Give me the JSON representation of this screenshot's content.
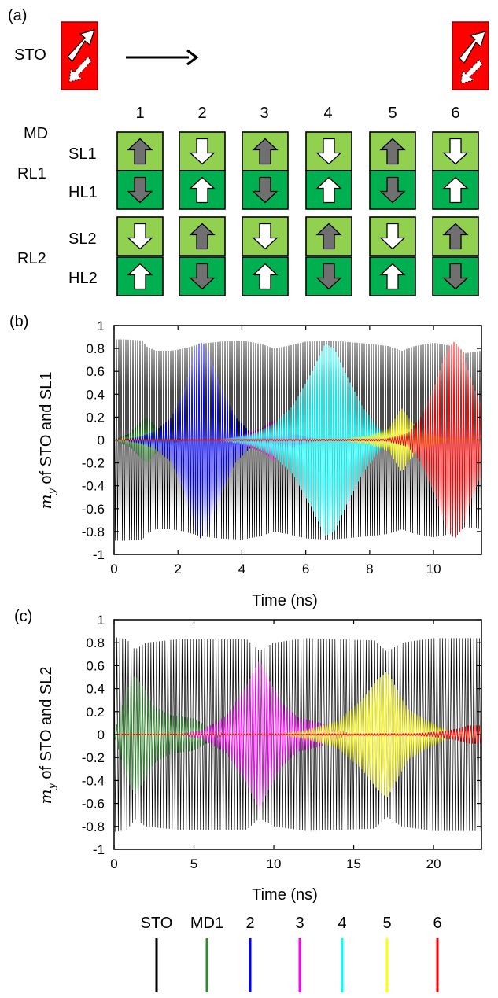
{
  "panel_a": {
    "panel_label": "(a)",
    "sto_label": "STO",
    "md_label": "MD",
    "columns": [
      "1",
      "2",
      "3",
      "4",
      "5",
      "6"
    ],
    "rows": [
      {
        "group": "RL1",
        "layer": "SL1",
        "arrows": [
          "up-gray",
          "down-white",
          "up-gray",
          "down-white",
          "up-gray",
          "down-white"
        ]
      },
      {
        "group": "RL1",
        "layer": "HL1",
        "arrows": [
          "down-gray",
          "up-white",
          "down-gray",
          "up-white",
          "down-gray",
          "up-white"
        ]
      },
      {
        "group": "RL2",
        "layer": "SL2",
        "arrows": [
          "down-white",
          "up-gray",
          "down-white",
          "up-gray",
          "down-white",
          "up-gray"
        ]
      },
      {
        "group": "RL2",
        "layer": "HL2",
        "arrows": [
          "up-white",
          "down-gray",
          "up-white",
          "down-gray",
          "up-white",
          "down-gray"
        ]
      }
    ],
    "group_labels": [
      "RL1",
      "RL2"
    ],
    "colors": {
      "sl_fill": "#92d050",
      "hl_fill": "#00b050",
      "sto_fill": "#ff0000",
      "arrow_gray": "#707070"
    }
  },
  "chart_data": [
    {
      "panel_label": "(b)",
      "type": "line",
      "xlabel": "Time (ns)",
      "ylabel": "m_y of STO and SL1",
      "xlim": [
        0,
        11.5
      ],
      "ylim": [
        -1,
        1
      ],
      "xticks": [
        "0",
        "2",
        "4",
        "6",
        "8",
        "10"
      ],
      "yticks": [
        "1",
        "0.8",
        "0.6",
        "0.4",
        "0.2",
        "0",
        "-0.2",
        "-0.4",
        "-0.6",
        "-0.8",
        "-1"
      ],
      "series": [
        {
          "name": "STO",
          "color": "#000000",
          "envelope": [
            [
              0,
              0.88
            ],
            [
              0.3,
              0.88
            ],
            [
              0.9,
              0.87
            ],
            [
              1.0,
              0.82
            ],
            [
              1.3,
              0.78
            ],
            [
              1.8,
              0.78
            ],
            [
              2.2,
              0.8
            ],
            [
              2.7,
              0.84
            ],
            [
              3.3,
              0.86
            ],
            [
              4.0,
              0.87
            ],
            [
              4.6,
              0.84
            ],
            [
              5.0,
              0.8
            ],
            [
              5.4,
              0.82
            ],
            [
              6.0,
              0.86
            ],
            [
              6.7,
              0.87
            ],
            [
              7.2,
              0.86
            ],
            [
              8.0,
              0.84
            ],
            [
              8.6,
              0.82
            ],
            [
              9.0,
              0.78
            ],
            [
              9.4,
              0.82
            ],
            [
              10.0,
              0.85
            ],
            [
              10.6,
              0.82
            ],
            [
              11.0,
              0.76
            ],
            [
              11.5,
              0.78
            ]
          ]
        },
        {
          "name": "MD1",
          "color": "#2e8b2e",
          "envelope": [
            [
              0.0,
              0.0
            ],
            [
              0.5,
              0.06
            ],
            [
              0.9,
              0.18
            ],
            [
              1.05,
              0.2
            ],
            [
              1.3,
              0.12
            ],
            [
              1.8,
              0.03
            ],
            [
              2.3,
              0.0
            ]
          ]
        },
        {
          "name": "2",
          "color": "#0000ff",
          "envelope": [
            [
              0.2,
              0.0
            ],
            [
              0.8,
              0.03
            ],
            [
              1.3,
              0.08
            ],
            [
              1.8,
              0.2
            ],
            [
              2.2,
              0.45
            ],
            [
              2.5,
              0.78
            ],
            [
              2.7,
              0.86
            ],
            [
              2.9,
              0.8
            ],
            [
              3.3,
              0.5
            ],
            [
              3.8,
              0.2
            ],
            [
              4.3,
              0.06
            ],
            [
              5.0,
              0.01
            ],
            [
              5.5,
              0.0
            ]
          ]
        },
        {
          "name": "3",
          "color": "#ff00ff",
          "envelope": [
            [
              3.2,
              0.0
            ],
            [
              4.0,
              0.04
            ],
            [
              4.6,
              0.1
            ],
            [
              5.0,
              0.18
            ],
            [
              5.3,
              0.12
            ],
            [
              5.8,
              0.04
            ],
            [
              6.5,
              0.0
            ]
          ]
        },
        {
          "name": "4",
          "color": "#00ffff",
          "envelope": [
            [
              3.2,
              0.0
            ],
            [
              4.3,
              0.05
            ],
            [
              5.0,
              0.14
            ],
            [
              5.6,
              0.3
            ],
            [
              6.2,
              0.6
            ],
            [
              6.6,
              0.84
            ],
            [
              6.9,
              0.8
            ],
            [
              7.3,
              0.55
            ],
            [
              7.8,
              0.28
            ],
            [
              8.3,
              0.1
            ],
            [
              9.0,
              0.03
            ],
            [
              9.6,
              0.0
            ]
          ]
        },
        {
          "name": "5",
          "color": "#ffff00",
          "envelope": [
            [
              7.0,
              0.0
            ],
            [
              8.0,
              0.04
            ],
            [
              8.6,
              0.1
            ],
            [
              9.0,
              0.28
            ],
            [
              9.3,
              0.16
            ],
            [
              9.8,
              0.06
            ],
            [
              10.5,
              0.0
            ]
          ]
        },
        {
          "name": "6",
          "color": "#ff0000",
          "envelope": [
            [
              0.0,
              0.004
            ],
            [
              8.5,
              0.01
            ],
            [
              9.2,
              0.06
            ],
            [
              9.6,
              0.2
            ],
            [
              10.0,
              0.45
            ],
            [
              10.4,
              0.78
            ],
            [
              10.65,
              0.86
            ],
            [
              10.9,
              0.78
            ],
            [
              11.2,
              0.5
            ],
            [
              11.5,
              0.3
            ]
          ]
        }
      ]
    },
    {
      "panel_label": "(c)",
      "type": "line",
      "xlabel": "Time (ns)",
      "ylabel": "m_y of STO and SL2",
      "xlim": [
        0,
        23
      ],
      "ylim": [
        -1,
        1
      ],
      "xticks": [
        "0",
        "5",
        "10",
        "15",
        "20"
      ],
      "yticks": [
        "1",
        "0.8",
        "0.6",
        "0.4",
        "0.2",
        "0",
        "-0.2",
        "-0.4",
        "-0.6",
        "-0.8",
        "-1"
      ],
      "series": [
        {
          "name": "STO",
          "color": "#000000",
          "envelope": [
            [
              0,
              0.85
            ],
            [
              0.8,
              0.83
            ],
            [
              1.3,
              0.74
            ],
            [
              2.0,
              0.8
            ],
            [
              4.0,
              0.83
            ],
            [
              8.3,
              0.83
            ],
            [
              9.1,
              0.73
            ],
            [
              10.0,
              0.8
            ],
            [
              12.0,
              0.84
            ],
            [
              16.3,
              0.82
            ],
            [
              17.1,
              0.72
            ],
            [
              18.0,
              0.8
            ],
            [
              20.0,
              0.84
            ],
            [
              23.0,
              0.84
            ]
          ]
        },
        {
          "name": "MD1",
          "color": "#2e8b2e",
          "envelope": [
            [
              0.0,
              0.0
            ],
            [
              0.4,
              0.2
            ],
            [
              0.9,
              0.42
            ],
            [
              1.3,
              0.52
            ],
            [
              1.8,
              0.42
            ],
            [
              2.5,
              0.25
            ],
            [
              3.5,
              0.17
            ],
            [
              5.0,
              0.14
            ],
            [
              6.0,
              0.06
            ],
            [
              7.0,
              0.0
            ]
          ]
        },
        {
          "name": "3",
          "color": "#ff00ff",
          "envelope": [
            [
              4.0,
              0.0
            ],
            [
              5.5,
              0.04
            ],
            [
              7.0,
              0.16
            ],
            [
              8.2,
              0.4
            ],
            [
              9.1,
              0.65
            ],
            [
              9.6,
              0.5
            ],
            [
              10.5,
              0.28
            ],
            [
              11.5,
              0.15
            ],
            [
              13.0,
              0.1
            ],
            [
              14.0,
              0.04
            ],
            [
              15.0,
              0.0
            ]
          ]
        },
        {
          "name": "5",
          "color": "#ffff00",
          "envelope": [
            [
              10.0,
              0.0
            ],
            [
              12.0,
              0.04
            ],
            [
              14.0,
              0.12
            ],
            [
              15.5,
              0.3
            ],
            [
              16.5,
              0.48
            ],
            [
              17.1,
              0.55
            ],
            [
              17.6,
              0.42
            ],
            [
              18.4,
              0.22
            ],
            [
              19.5,
              0.13
            ],
            [
              20.3,
              0.08
            ],
            [
              21.0,
              0.03
            ],
            [
              22.0,
              0.0
            ]
          ]
        },
        {
          "name": "6",
          "color": "#ff0000",
          "envelope": [
            [
              0.0,
              0.004
            ],
            [
              19.0,
              0.01
            ],
            [
              20.5,
              0.03
            ],
            [
              21.5,
              0.05
            ],
            [
              22.2,
              0.08
            ],
            [
              23.0,
              0.08
            ]
          ]
        }
      ]
    }
  ],
  "legend": {
    "entries": [
      {
        "label": "STO",
        "color": "#000000"
      },
      {
        "label": "MD1",
        "color": "#2e8b2e"
      },
      {
        "label": "2",
        "color": "#0000ff"
      },
      {
        "label": "3",
        "color": "#ff00ff"
      },
      {
        "label": "4",
        "color": "#00ffff"
      },
      {
        "label": "5",
        "color": "#ffff00"
      },
      {
        "label": "6",
        "color": "#ff0000"
      }
    ]
  }
}
